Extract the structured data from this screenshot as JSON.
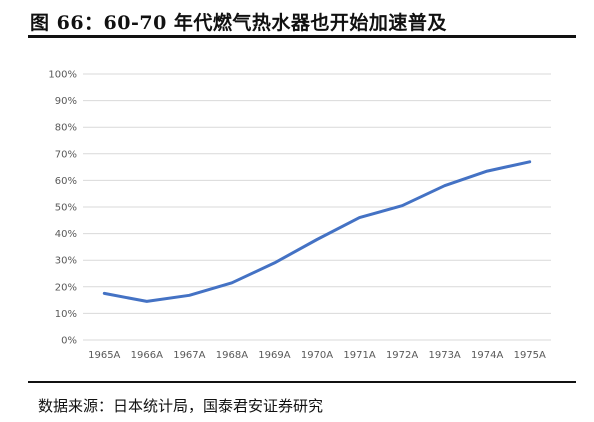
{
  "header": {
    "title": "图 66：60-70 年代燃气热水器也开始加速普及"
  },
  "footer": {
    "source": "数据来源：日本统计局，国泰君安证券研究"
  },
  "chart_data": {
    "type": "line",
    "title": "",
    "xlabel": "",
    "ylabel": "",
    "categories": [
      "1965A",
      "1966A",
      "1967A",
      "1968A",
      "1969A",
      "1970A",
      "1971A",
      "1972A",
      "1973A",
      "1974A",
      "1975A"
    ],
    "y_ticks": [
      "0%",
      "10%",
      "20%",
      "30%",
      "40%",
      "50%",
      "60%",
      "70%",
      "80%",
      "90%",
      "100%"
    ],
    "series": [
      {
        "values": [
          17.5,
          14.5,
          16.8,
          21.5,
          29,
          37.8,
          46,
          50.5,
          58,
          63.5,
          67
        ],
        "color": "#4472C4"
      }
    ],
    "ylim": [
      0,
      100
    ],
    "grid": true,
    "legend": false,
    "gridline_color": "#d9d9d9"
  }
}
